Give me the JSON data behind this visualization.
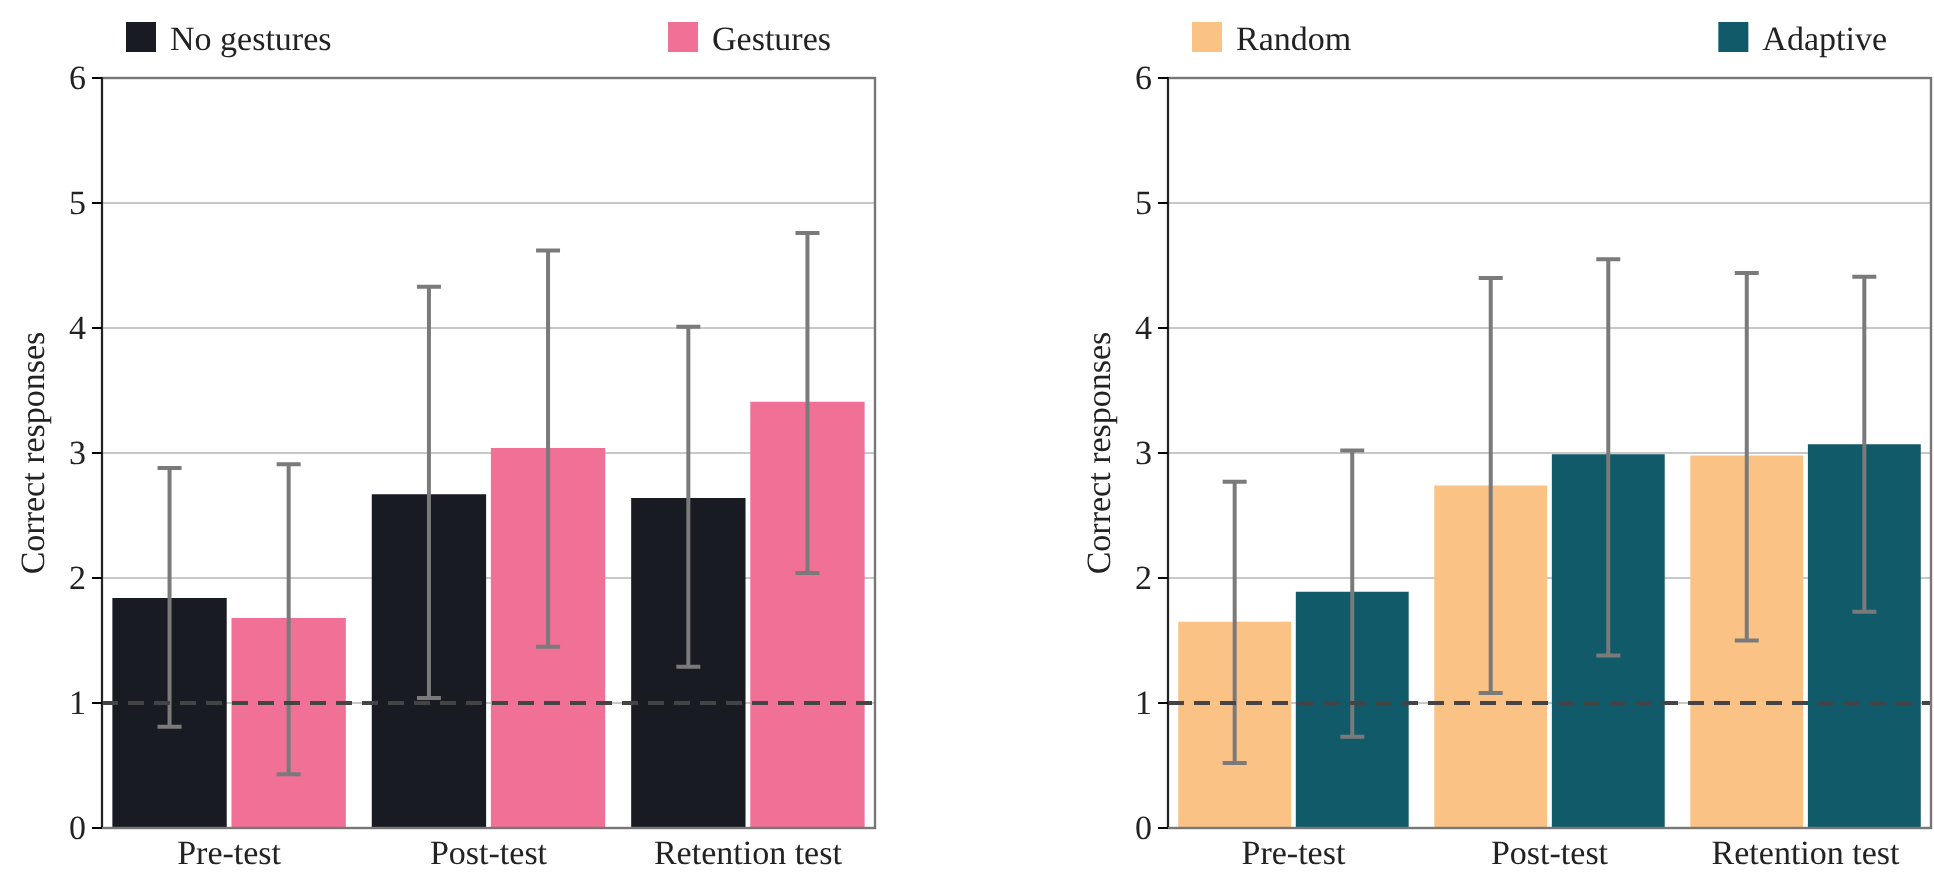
{
  "chart_data": [
    {
      "type": "bar",
      "categories": [
        "Pre-test",
        "Post-test",
        "Retention test"
      ],
      "ylabel": "Correct responses",
      "ylim": [
        0,
        6
      ],
      "yticks": [
        0,
        1,
        2,
        3,
        4,
        5,
        6
      ],
      "grid": "y",
      "legend": "top",
      "series": [
        {
          "name": "No gestures",
          "color": "#181b22",
          "values": [
            1.84,
            2.67,
            2.64
          ],
          "errors": [
            [
              0.81,
              2.88
            ],
            [
              1.04,
              4.33
            ],
            [
              1.29,
              4.01
            ]
          ]
        },
        {
          "name": "Gestures",
          "color": "#f07096",
          "values": [
            1.68,
            3.04,
            3.41
          ],
          "errors": [
            [
              0.43,
              2.91
            ],
            [
              1.45,
              4.62
            ],
            [
              2.04,
              4.76
            ]
          ]
        }
      ],
      "ref_lines": [
        {
          "axis": "y",
          "value": 1,
          "color": "#444444",
          "line_style": "dashed"
        }
      ]
    },
    {
      "type": "bar",
      "categories": [
        "Pre-test",
        "Post-test",
        "Retention test"
      ],
      "ylabel": "Correct responses",
      "ylim": [
        0,
        6
      ],
      "yticks": [
        0,
        1,
        2,
        3,
        4,
        5,
        6
      ],
      "grid": "y",
      "legend": "top",
      "series": [
        {
          "name": "Random",
          "color": "#fbc286",
          "values": [
            1.65,
            2.74,
            2.98
          ],
          "errors": [
            [
              0.52,
              2.77
            ],
            [
              1.08,
              4.4
            ],
            [
              1.5,
              4.44
            ]
          ]
        },
        {
          "name": "Adaptive",
          "color": "#115a69",
          "values": [
            1.89,
            2.99,
            3.07
          ],
          "errors": [
            [
              0.73,
              3.02
            ],
            [
              1.38,
              4.55
            ],
            [
              1.73,
              4.41
            ]
          ]
        }
      ],
      "ref_lines": [
        {
          "axis": "y",
          "value": 1,
          "color": "#444444",
          "line_style": "dashed"
        }
      ]
    }
  ]
}
